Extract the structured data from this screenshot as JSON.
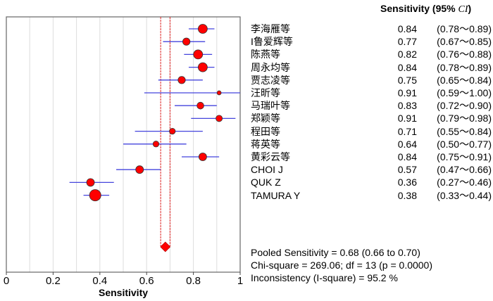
{
  "chart_data": {
    "type": "forest",
    "xlabel": "Sensitivity",
    "xlim": [
      0,
      1
    ],
    "xticks": [
      "0",
      "0.2",
      "0.4",
      "0.6",
      "0.8",
      "1"
    ],
    "grid": "vertical at 0.1 steps",
    "header": "Sensitivity (95%",
    "header_ci": "CI",
    "header_close": ")",
    "studies": [
      {
        "name": "李海雁等",
        "value": 0.84,
        "lo": 0.78,
        "hi": 0.89,
        "ci_text": "(0.78～0.89)",
        "value_text": "0.84",
        "weight": 1.0
      },
      {
        "name": "I鲁爱辉等",
        "value": 0.77,
        "lo": 0.67,
        "hi": 0.85,
        "ci_text": "(0.67～0.85)",
        "value_text": "0.77",
        "weight": 0.8
      },
      {
        "name": "陈燕等",
        "value": 0.82,
        "lo": 0.76,
        "hi": 0.88,
        "ci_text": "(0.76～0.88)",
        "value_text": "0.82",
        "weight": 1.0
      },
      {
        "name": "周永均等",
        "value": 0.84,
        "lo": 0.78,
        "hi": 0.89,
        "ci_text": "(0.78～0.89)",
        "value_text": "0.84",
        "weight": 1.0
      },
      {
        "name": "贾志凌等",
        "value": 0.75,
        "lo": 0.65,
        "hi": 0.84,
        "ci_text": "(0.65～0.84)",
        "value_text": "0.75",
        "weight": 0.8
      },
      {
        "name": "汪昕等",
        "value": 0.91,
        "lo": 0.59,
        "hi": 1.0,
        "ci_text": "(0.59～1.00)",
        "value_text": "0.91",
        "weight": 0.45
      },
      {
        "name": "马瑞叶等",
        "value": 0.83,
        "lo": 0.72,
        "hi": 0.9,
        "ci_text": "(0.72～0.90)",
        "value_text": "0.83",
        "weight": 0.75
      },
      {
        "name": "郑颖等",
        "value": 0.91,
        "lo": 0.79,
        "hi": 0.98,
        "ci_text": "(0.79～0.98)",
        "value_text": "0.91",
        "weight": 0.7
      },
      {
        "name": "程田等",
        "value": 0.71,
        "lo": 0.55,
        "hi": 0.84,
        "ci_text": "(0.55～0.84)",
        "value_text": "0.71",
        "weight": 0.65
      },
      {
        "name": "蒋英等",
        "value": 0.64,
        "lo": 0.5,
        "hi": 0.77,
        "ci_text": "(0.50～0.77)",
        "value_text": "0.64",
        "weight": 0.65
      },
      {
        "name": "黄彩云等",
        "value": 0.84,
        "lo": 0.75,
        "hi": 0.91,
        "ci_text": "(0.75～0.91)",
        "value_text": "0.84",
        "weight": 0.85
      },
      {
        "name": "CHOI J",
        "value": 0.57,
        "lo": 0.47,
        "hi": 0.66,
        "ci_text": "(0.47～0.66)",
        "value_text": "0.57",
        "weight": 0.85
      },
      {
        "name": "QUK Z",
        "value": 0.36,
        "lo": 0.27,
        "hi": 0.46,
        "ci_text": "(0.27～0.46)",
        "value_text": "0.36",
        "weight": 0.85
      },
      {
        "name": "TAMURA Y",
        "value": 0.38,
        "lo": 0.33,
        "hi": 0.44,
        "ci_text": "(0.33～0.44)",
        "value_text": "0.38",
        "weight": 1.25
      }
    ],
    "pooled": {
      "value": 0.68,
      "lo": 0.66,
      "hi": 0.7
    },
    "footer": [
      "Pooled Sensitivity = 0.68 (0.66 to 0.70)",
      "Chi-square = 269.06; df =  13 (p = 0.0000)",
      "Inconsistency (I-square) = 95.2 %"
    ],
    "colors": {
      "marker": "#ff0000",
      "ci_line": "#4444dd",
      "pooled_line": "#dd2222",
      "grid": "#dddddd"
    }
  }
}
